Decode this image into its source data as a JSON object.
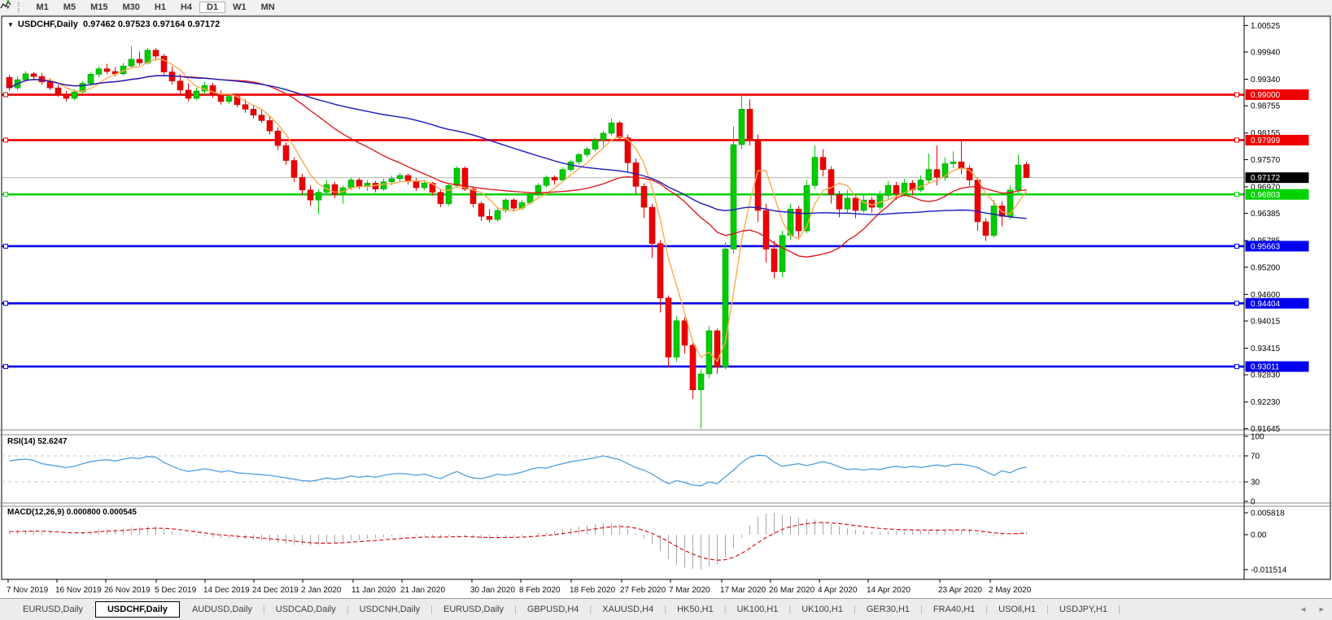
{
  "toolbar": {
    "icon": "indicators-icon",
    "timeframes": [
      "M1",
      "M5",
      "M15",
      "M30",
      "H1",
      "H4",
      "D1",
      "W1",
      "MN"
    ],
    "active_timeframe": "D1"
  },
  "chart": {
    "title_text": "USDCHF,Daily  0.97462 0.97523 0.97164 0.97172",
    "symbol": "USDCHF",
    "period": "Daily",
    "ohlc": {
      "open": "0.97462",
      "high": "0.97523",
      "low": "0.97164",
      "close": "0.97172"
    },
    "price_axis_ticks": [
      "1.00525",
      "0.99940",
      "0.99340",
      "0.98755",
      "0.98155",
      "0.97570",
      "0.96970",
      "0.96385",
      "0.95785",
      "0.95200",
      "0.94600",
      "0.94015",
      "0.93415",
      "0.92830",
      "0.92230",
      "0.91645"
    ],
    "levels": [
      {
        "label": "0.99000",
        "value": 0.99,
        "color": "#ee0000"
      },
      {
        "label": "0.97999",
        "value": 0.97999,
        "color": "#ee0000"
      },
      {
        "label": "0.96803",
        "value": 0.96803,
        "color": "#00d200"
      },
      {
        "label": "0.95663",
        "value": 0.95663,
        "color": "#0000ee"
      },
      {
        "label": "0.94404",
        "value": 0.94404,
        "color": "#0000ee"
      },
      {
        "label": "0.93011",
        "value": 0.93011,
        "color": "#0000ee"
      }
    ],
    "current_price": {
      "label": "0.97172",
      "value": 0.97172,
      "line_color": "#b8b8b8",
      "box_color": "#000000"
    },
    "colors": {
      "up": "#00cc00",
      "up_edge": "#009900",
      "down": "#ee0000",
      "down_edge": "#bb0000",
      "ma_fast": "#ffaa4d",
      "ma_mid": "#dd1111",
      "ma_slow": "#1a1abb"
    },
    "ma_periods": {
      "fast": 5,
      "mid": 22,
      "slow": 50
    },
    "date_axis": [
      [
        "7 Nov 2019",
        8
      ],
      [
        "16 Nov 2019",
        68
      ],
      [
        "26 Nov 2019",
        128
      ],
      [
        "5 Dec 2019",
        190
      ],
      [
        "14 Dec 2019",
        250
      ],
      [
        "24 Dec 2019",
        310
      ],
      [
        "2 Jan 2020",
        370
      ],
      [
        "11 Jan 2020",
        432
      ],
      [
        "21 Jan 2020",
        492
      ],
      [
        "30 Jan 2020",
        578
      ],
      [
        "8 Feb 2020",
        638
      ],
      [
        "18 Feb 2020",
        700
      ],
      [
        "27 Feb 2020",
        762
      ],
      [
        "7 Mar 2020",
        822
      ],
      [
        "17 Mar 2020",
        885
      ],
      [
        "26 Mar 2020",
        945
      ],
      [
        "4 Apr 2020",
        1005
      ],
      [
        "14 Apr 2020",
        1065
      ],
      [
        "23 Apr 2020",
        1153
      ],
      [
        "2 May 2020",
        1215
      ]
    ]
  },
  "chart_data": {
    "type": "candlestick",
    "symbol": "USDCHF",
    "timeframe": "Daily",
    "candles": [
      [
        0.9938,
        0.9944,
        0.9908,
        0.9915
      ],
      [
        0.9915,
        0.994,
        0.991,
        0.9933
      ],
      [
        0.9933,
        0.9952,
        0.9928,
        0.9946
      ],
      [
        0.9946,
        0.995,
        0.9932,
        0.994
      ],
      [
        0.994,
        0.9948,
        0.9922,
        0.9928
      ],
      [
        0.9928,
        0.9936,
        0.991,
        0.9915
      ],
      [
        0.9915,
        0.9922,
        0.9895,
        0.99
      ],
      [
        0.99,
        0.9908,
        0.9885,
        0.9892
      ],
      [
        0.9892,
        0.9912,
        0.9888,
        0.9906
      ],
      [
        0.9906,
        0.993,
        0.9902,
        0.9925
      ],
      [
        0.9925,
        0.995,
        0.992,
        0.9945
      ],
      [
        0.9945,
        0.9962,
        0.9938,
        0.9957
      ],
      [
        0.9957,
        0.9968,
        0.9945,
        0.9951
      ],
      [
        0.9951,
        0.996,
        0.994,
        0.9946
      ],
      [
        0.9946,
        0.997,
        0.9942,
        0.9963
      ],
      [
        0.9963,
        1.0006,
        0.9958,
        0.9978
      ],
      [
        0.9978,
        0.9995,
        0.9965,
        0.997
      ],
      [
        0.997,
        1.0003,
        0.9966,
        0.9998
      ],
      [
        0.9998,
        1.0002,
        0.9975,
        0.9985
      ],
      [
        0.9985,
        0.999,
        0.9945,
        0.995
      ],
      [
        0.995,
        0.9962,
        0.9922,
        0.993
      ],
      [
        0.993,
        0.9945,
        0.9902,
        0.991
      ],
      [
        0.991,
        0.9925,
        0.9885,
        0.9892
      ],
      [
        0.9892,
        0.9915,
        0.9888,
        0.9908
      ],
      [
        0.9908,
        0.9928,
        0.99,
        0.992
      ],
      [
        0.992,
        0.9926,
        0.9893,
        0.99
      ],
      [
        0.99,
        0.991,
        0.9878,
        0.9885
      ],
      [
        0.9885,
        0.9902,
        0.988,
        0.9896
      ],
      [
        0.9896,
        0.99,
        0.9872,
        0.9878
      ],
      [
        0.9878,
        0.989,
        0.986,
        0.9868
      ],
      [
        0.9868,
        0.9875,
        0.9848,
        0.9855
      ],
      [
        0.9855,
        0.9868,
        0.9838,
        0.9843
      ],
      [
        0.9843,
        0.9852,
        0.9812,
        0.982
      ],
      [
        0.982,
        0.9828,
        0.9778,
        0.9788
      ],
      [
        0.9788,
        0.9795,
        0.9745,
        0.9755
      ],
      [
        0.9755,
        0.9762,
        0.9708,
        0.9718
      ],
      [
        0.9718,
        0.9726,
        0.9678,
        0.969
      ],
      [
        0.969,
        0.97,
        0.9655,
        0.9668
      ],
      [
        0.9668,
        0.9692,
        0.9636,
        0.9685
      ],
      [
        0.9685,
        0.9712,
        0.968,
        0.9702
      ],
      [
        0.9702,
        0.9708,
        0.9672,
        0.968
      ],
      [
        0.968,
        0.97,
        0.966,
        0.9695
      ],
      [
        0.9695,
        0.9718,
        0.969,
        0.9712
      ],
      [
        0.9712,
        0.9716,
        0.9692,
        0.9698
      ],
      [
        0.9698,
        0.9712,
        0.9688,
        0.9705
      ],
      [
        0.9705,
        0.971,
        0.9685,
        0.9692
      ],
      [
        0.9692,
        0.9715,
        0.9688,
        0.9708
      ],
      [
        0.9708,
        0.9722,
        0.97,
        0.9715
      ],
      [
        0.9715,
        0.9728,
        0.9708,
        0.9722
      ],
      [
        0.9722,
        0.9726,
        0.9702,
        0.971
      ],
      [
        0.971,
        0.9716,
        0.9688,
        0.9695
      ],
      [
        0.9695,
        0.9712,
        0.969,
        0.9705
      ],
      [
        0.9705,
        0.9708,
        0.9678,
        0.9685
      ],
      [
        0.9685,
        0.969,
        0.9652,
        0.966
      ],
      [
        0.966,
        0.9705,
        0.9655,
        0.97
      ],
      [
        0.97,
        0.9742,
        0.9695,
        0.9738
      ],
      [
        0.9738,
        0.9742,
        0.9688,
        0.9692
      ],
      [
        0.9692,
        0.9698,
        0.9652,
        0.966
      ],
      [
        0.966,
        0.9665,
        0.9622,
        0.9632
      ],
      [
        0.9632,
        0.9648,
        0.9618,
        0.9625
      ],
      [
        0.9625,
        0.9652,
        0.962,
        0.9645
      ],
      [
        0.9645,
        0.9672,
        0.964,
        0.9668
      ],
      [
        0.9668,
        0.9672,
        0.9642,
        0.965
      ],
      [
        0.965,
        0.9668,
        0.9645,
        0.9662
      ],
      [
        0.9662,
        0.9685,
        0.9658,
        0.968
      ],
      [
        0.968,
        0.9705,
        0.9675,
        0.97
      ],
      [
        0.97,
        0.9722,
        0.9695,
        0.9718
      ],
      [
        0.9718,
        0.9722,
        0.9702,
        0.9712
      ],
      [
        0.9712,
        0.974,
        0.9708,
        0.9735
      ],
      [
        0.9735,
        0.9756,
        0.973,
        0.9752
      ],
      [
        0.9752,
        0.9772,
        0.9746,
        0.9768
      ],
      [
        0.9768,
        0.9785,
        0.9762,
        0.978
      ],
      [
        0.978,
        0.9805,
        0.9775,
        0.98
      ],
      [
        0.98,
        0.982,
        0.9782,
        0.9815
      ],
      [
        0.9815,
        0.9848,
        0.981,
        0.9838
      ],
      [
        0.9838,
        0.9842,
        0.9798,
        0.9805
      ],
      [
        0.9805,
        0.9812,
        0.973,
        0.975
      ],
      [
        0.975,
        0.976,
        0.968,
        0.9698
      ],
      [
        0.9698,
        0.9705,
        0.9628,
        0.9652
      ],
      [
        0.9652,
        0.966,
        0.954,
        0.9572
      ],
      [
        0.9572,
        0.958,
        0.942,
        0.9452
      ],
      [
        0.9452,
        0.9458,
        0.93,
        0.9322
      ],
      [
        0.9322,
        0.9412,
        0.9312,
        0.9402
      ],
      [
        0.9402,
        0.941,
        0.933,
        0.9348
      ],
      [
        0.9348,
        0.9355,
        0.923,
        0.925
      ],
      [
        0.925,
        0.9295,
        0.91645,
        0.9285
      ],
      [
        0.9285,
        0.939,
        0.9275,
        0.938
      ],
      [
        0.938,
        0.9385,
        0.9285,
        0.93
      ],
      [
        0.93,
        0.9575,
        0.9295,
        0.956
      ],
      [
        0.956,
        0.983,
        0.955,
        0.979
      ],
      [
        0.979,
        0.9901,
        0.978,
        0.9868
      ],
      [
        0.9868,
        0.989,
        0.9788,
        0.98
      ],
      [
        0.98,
        0.9812,
        0.962,
        0.9645
      ],
      [
        0.9645,
        0.966,
        0.953,
        0.956
      ],
      [
        0.956,
        0.9578,
        0.9495,
        0.951
      ],
      [
        0.951,
        0.96,
        0.9498,
        0.959
      ],
      [
        0.959,
        0.966,
        0.958,
        0.9648
      ],
      [
        0.9648,
        0.9655,
        0.9585,
        0.96
      ],
      [
        0.96,
        0.9712,
        0.9595,
        0.97
      ],
      [
        0.97,
        0.9788,
        0.9692,
        0.9762
      ],
      [
        0.9762,
        0.978,
        0.972,
        0.9735
      ],
      [
        0.9735,
        0.9742,
        0.966,
        0.968
      ],
      [
        0.968,
        0.9688,
        0.963,
        0.9648
      ],
      [
        0.9648,
        0.969,
        0.9638,
        0.9672
      ],
      [
        0.9672,
        0.968,
        0.9628,
        0.9645
      ],
      [
        0.9645,
        0.9678,
        0.964,
        0.9668
      ],
      [
        0.9668,
        0.9675,
        0.964,
        0.9652
      ],
      [
        0.9652,
        0.9688,
        0.9645,
        0.9678
      ],
      [
        0.9678,
        0.971,
        0.967,
        0.97
      ],
      [
        0.97,
        0.9708,
        0.9668,
        0.9682
      ],
      [
        0.9682,
        0.9715,
        0.9675,
        0.9705
      ],
      [
        0.9705,
        0.9712,
        0.9678,
        0.969
      ],
      [
        0.969,
        0.9722,
        0.9685,
        0.9712
      ],
      [
        0.9712,
        0.977,
        0.9705,
        0.9735
      ],
      [
        0.9735,
        0.9788,
        0.97,
        0.9718
      ],
      [
        0.9718,
        0.9762,
        0.971,
        0.9748
      ],
      [
        0.9748,
        0.9775,
        0.9738,
        0.9752
      ],
      [
        0.9752,
        0.98,
        0.9725,
        0.9738
      ],
      [
        0.9738,
        0.9745,
        0.97,
        0.9712
      ],
      [
        0.9712,
        0.9718,
        0.96,
        0.962
      ],
      [
        0.962,
        0.9628,
        0.9578,
        0.959
      ],
      [
        0.959,
        0.9668,
        0.9585,
        0.9655
      ],
      [
        0.9655,
        0.9665,
        0.961,
        0.9632
      ],
      [
        0.9632,
        0.97,
        0.9625,
        0.969
      ],
      [
        0.969,
        0.9768,
        0.9682,
        0.9745
      ],
      [
        0.97462,
        0.97523,
        0.97164,
        0.97172
      ]
    ],
    "rsi_values": [
      62,
      64,
      65,
      63,
      58,
      56,
      54,
      52,
      54,
      58,
      61,
      63,
      64,
      62,
      65,
      67,
      66,
      69,
      68,
      60,
      54,
      49,
      46,
      48,
      50,
      48,
      45,
      47,
      44,
      43,
      42,
      41,
      40,
      38,
      36,
      34,
      32,
      31,
      33,
      36,
      34,
      36,
      39,
      37,
      39,
      37,
      40,
      42,
      43,
      42,
      40,
      42,
      38,
      35,
      41,
      46,
      40,
      36,
      35,
      38,
      42,
      40,
      42,
      45,
      49,
      52,
      51,
      55,
      58,
      61,
      63,
      65,
      67,
      70,
      67,
      64,
      58,
      52,
      48,
      42,
      34,
      27,
      32,
      29,
      25,
      24,
      30,
      27,
      38,
      48,
      60,
      68,
      71,
      70,
      60,
      54,
      56,
      58,
      55,
      58,
      61,
      58,
      53,
      49,
      50,
      48,
      50,
      49,
      52,
      54,
      52,
      54,
      52,
      54,
      56,
      54,
      57,
      57,
      55,
      52,
      46,
      40,
      47,
      44,
      50,
      52.6
    ],
    "macd_values": [
      0.0008,
      0.001,
      0.0012,
      0.0011,
      0.0008,
      0.0005,
      0.0002,
      0.0,
      0.0002,
      0.0006,
      0.001,
      0.0014,
      0.0016,
      0.0014,
      0.0016,
      0.0019,
      0.002,
      0.0023,
      0.0022,
      0.0016,
      0.001,
      0.0004,
      -0.0002,
      -0.0004,
      -0.0006,
      -0.0009,
      -0.0012,
      -0.0012,
      -0.0014,
      -0.0015,
      -0.0017,
      -0.0019,
      -0.0022,
      -0.0026,
      -0.003,
      -0.0033,
      -0.0035,
      -0.0036,
      -0.0033,
      -0.0028,
      -0.0026,
      -0.0022,
      -0.0018,
      -0.0016,
      -0.0013,
      -0.0012,
      -0.0009,
      -0.0006,
      -0.0004,
      -0.0003,
      -0.0004,
      -0.0003,
      -0.0006,
      -0.0009,
      -0.0005,
      -0.0002,
      -0.0006,
      -0.0011,
      -0.0014,
      -0.0013,
      -0.001,
      -0.0009,
      -0.0007,
      -0.0004,
      0.0,
      0.0004,
      0.0006,
      0.001,
      0.0014,
      0.0018,
      0.0021,
      0.0025,
      0.0028,
      0.0031,
      0.003,
      0.0026,
      0.0016,
      0.0004,
      -0.0012,
      -0.003,
      -0.0055,
      -0.008,
      -0.01,
      -0.0108,
      -0.0112,
      -0.0115,
      -0.0105,
      -0.0098,
      -0.0075,
      -0.0045,
      -0.001,
      0.0025,
      0.0048,
      0.0056,
      0.0058,
      0.0054,
      0.005,
      0.0045,
      0.0042,
      0.004,
      0.0035,
      0.0028,
      0.0022,
      0.0017,
      0.0013,
      0.001,
      0.0008,
      0.0008,
      0.0009,
      0.0009,
      0.001,
      0.001,
      0.0011,
      0.0012,
      0.0012,
      0.0013,
      0.0013,
      0.0012,
      0.001,
      0.0004,
      -0.0003,
      -0.0006,
      -0.0004,
      0.0,
      0.0005,
      0.0008
    ]
  },
  "rsi": {
    "label_text": "RSI(14) 52.6247",
    "name": "RSI(14)",
    "value": "52.6247",
    "axis_labels": [
      "100",
      "70",
      "30",
      "0"
    ],
    "line_color": "#4d9fe0",
    "level_color": "#c4c4c4"
  },
  "macd": {
    "label_text": "MACD(12,26,9) 0.000800 0.000545",
    "name": "MACD(12,26,9)",
    "values": [
      "0.000800",
      "0.000545"
    ],
    "axis_labels": [
      "0.005818",
      "0.00",
      "-0.011514"
    ],
    "bar_color": "#a8a8a8",
    "signal_color": "#dd1111"
  },
  "tabs": {
    "items": [
      "EURUSD,Daily",
      "USDCHF,Daily",
      "AUDUSD,Daily",
      "USDCAD,Daily",
      "USDCNH,Daily",
      "EURUSD,Daily",
      "GBPUSD,H4",
      "XAUUSD,H4",
      "HK50,H1",
      "UK100,H1",
      "UK100,H1",
      "GER30,H1",
      "FRA40,H1",
      "USOil,H1",
      "USDJPY,H1"
    ],
    "active_index": 1,
    "nav_left": "◂",
    "nav_right": "▸"
  }
}
